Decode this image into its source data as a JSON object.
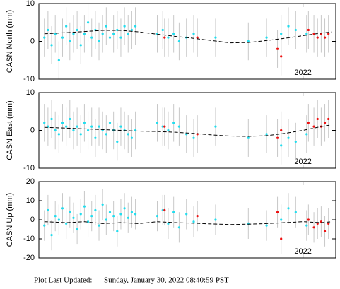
{
  "chart_data": [
    {
      "type": "scatter",
      "ylabel": "CASN North (mm)",
      "xlim": [
        2020.55,
        2022.18
      ],
      "xticks": [
        2022
      ],
      "ylim": [
        -10,
        10
      ],
      "yticks": [
        10,
        0,
        -10
      ],
      "series": [
        {
          "mode": "markers",
          "color": "#22ddee",
          "error": 5,
          "x": [
            2020.58,
            2020.6,
            2020.62,
            2020.64,
            2020.66,
            2020.68,
            2020.7,
            2020.72,
            2020.74,
            2020.76,
            2020.78,
            2020.8,
            2020.82,
            2020.84,
            2020.86,
            2020.88,
            2020.9,
            2020.92,
            2020.94,
            2020.96,
            2020.98,
            2021.0,
            2021.02,
            2021.04,
            2021.06,
            2021.08,
            2021.2,
            2021.23,
            2021.26,
            2021.29,
            2021.32,
            2021.36,
            2021.4,
            2021.52,
            2021.7,
            2021.8,
            2021.88,
            2021.92,
            2021.96,
            2022.02
          ],
          "values": [
            1,
            3,
            -1,
            2,
            -5,
            1,
            4,
            0,
            2,
            3,
            -1,
            2,
            5,
            1,
            3,
            0,
            2,
            4,
            1,
            2,
            3,
            1,
            4,
            2,
            3,
            4,
            2,
            3,
            1,
            2,
            0,
            1,
            2,
            1,
            0,
            1,
            2,
            4,
            3,
            2
          ]
        },
        {
          "mode": "markers",
          "color": "#ee1111",
          "error": 5,
          "x": [
            2021.24,
            2021.42,
            2021.86,
            2021.88,
            2022.03,
            2022.06,
            2022.08,
            2022.1,
            2022.12,
            2022.14
          ],
          "values": [
            1,
            1,
            -2,
            -4,
            3,
            2,
            1,
            2,
            1,
            2
          ]
        },
        {
          "mode": "line",
          "color": "#000000",
          "x": [
            2020.58,
            2020.7,
            2020.8,
            2020.9,
            2021.0,
            2021.1,
            2021.2,
            2021.3,
            2021.4,
            2021.5,
            2021.6,
            2021.7,
            2021.8,
            2021.9,
            2022.0,
            2022.1,
            2022.16
          ],
          "values": [
            2,
            2.3,
            2.6,
            2.9,
            2.9,
            2.5,
            1.9,
            1.3,
            0.8,
            0.2,
            -0.4,
            -0.3,
            0.2,
            0.8,
            1.5,
            2.2,
            2.5
          ]
        }
      ]
    },
    {
      "type": "scatter",
      "ylabel": "CASN East (mm)",
      "xlim": [
        2020.55,
        2022.18
      ],
      "xticks": [
        2022
      ],
      "ylim": [
        -10,
        10
      ],
      "yticks": [
        10,
        0,
        -10
      ],
      "series": [
        {
          "mode": "markers",
          "color": "#22ddee",
          "error": 5,
          "x": [
            2020.58,
            2020.6,
            2020.62,
            2020.64,
            2020.66,
            2020.68,
            2020.7,
            2020.72,
            2020.74,
            2020.76,
            2020.78,
            2020.8,
            2020.82,
            2020.84,
            2020.86,
            2020.88,
            2020.9,
            2020.92,
            2020.94,
            2020.96,
            2020.98,
            2021.0,
            2021.02,
            2021.04,
            2021.06,
            2021.08,
            2021.2,
            2021.23,
            2021.26,
            2021.29,
            2021.32,
            2021.36,
            2021.4,
            2021.52,
            2021.7,
            2021.8,
            2021.88,
            2021.92,
            2021.96,
            2022.02
          ],
          "values": [
            2,
            1,
            3,
            0,
            -1,
            2,
            1,
            3,
            0,
            1,
            -1,
            2,
            0,
            1,
            -2,
            1,
            0,
            -1,
            2,
            0,
            -3,
            1,
            0,
            -1,
            -2,
            0,
            2,
            1,
            0,
            2,
            1,
            -1,
            -2,
            1,
            -2,
            -1,
            -4,
            -2,
            -3,
            -1
          ]
        },
        {
          "mode": "markers",
          "color": "#ee1111",
          "error": 5,
          "x": [
            2021.24,
            2021.42,
            2021.86,
            2021.88,
            2022.03,
            2022.06,
            2022.08,
            2022.1,
            2022.12,
            2022.14
          ],
          "values": [
            1,
            -1,
            -2,
            0,
            2,
            1,
            3,
            1,
            2,
            3
          ]
        },
        {
          "mode": "line",
          "color": "#000000",
          "x": [
            2020.58,
            2020.7,
            2020.8,
            2020.9,
            2021.0,
            2021.1,
            2021.2,
            2021.3,
            2021.4,
            2021.5,
            2021.6,
            2021.7,
            2021.8,
            2021.9,
            2022.0,
            2022.1,
            2022.16
          ],
          "values": [
            0.8,
            0.6,
            0.4,
            0.2,
            0,
            -0.2,
            -0.3,
            -0.5,
            -0.8,
            -1.2,
            -1.5,
            -1.6,
            -1.4,
            -0.8,
            0,
            1,
            1.5
          ]
        }
      ]
    },
    {
      "type": "scatter",
      "ylabel": "CASN Up (mm)",
      "xlim": [
        2020.55,
        2022.18
      ],
      "xticks": [
        2022
      ],
      "ylim": [
        -20,
        20
      ],
      "yticks": [
        20,
        10,
        0,
        -10,
        -20
      ],
      "series": [
        {
          "mode": "markers",
          "color": "#22ddee",
          "error": 8,
          "x": [
            2020.58,
            2020.6,
            2020.62,
            2020.64,
            2020.66,
            2020.68,
            2020.7,
            2020.72,
            2020.74,
            2020.76,
            2020.78,
            2020.8,
            2020.82,
            2020.84,
            2020.86,
            2020.88,
            2020.9,
            2020.92,
            2020.94,
            2020.96,
            2020.98,
            2021.0,
            2021.02,
            2021.04,
            2021.06,
            2021.08,
            2021.2,
            2021.23,
            2021.26,
            2021.29,
            2021.32,
            2021.36,
            2021.4,
            2021.52,
            2021.7,
            2021.8,
            2021.88,
            2021.92,
            2021.96,
            2022.02
          ],
          "values": [
            -3,
            5,
            -8,
            2,
            0,
            6,
            -2,
            4,
            1,
            -5,
            3,
            7,
            -1,
            2,
            5,
            -3,
            8,
            0,
            4,
            2,
            -6,
            3,
            6,
            1,
            4,
            3,
            2,
            5,
            -2,
            4,
            -4,
            3,
            -1,
            0,
            -2,
            -3,
            0,
            6,
            4,
            -3
          ]
        },
        {
          "mode": "markers",
          "color": "#ee1111",
          "error": 8,
          "x": [
            2021.24,
            2021.42,
            2021.86,
            2021.88,
            2022.03,
            2022.06,
            2022.08,
            2022.1,
            2022.12,
            2022.14
          ],
          "values": [
            5,
            2,
            4,
            -10,
            0,
            -4,
            -2,
            -1,
            -6,
            -2
          ]
        },
        {
          "mode": "line",
          "color": "#000000",
          "x": [
            2020.58,
            2020.7,
            2020.8,
            2020.9,
            2021.0,
            2021.1,
            2021.2,
            2021.3,
            2021.4,
            2021.5,
            2021.6,
            2021.7,
            2021.8,
            2021.9,
            2022.0,
            2022.1,
            2022.16
          ],
          "values": [
            -1,
            -1.5,
            -1,
            -2,
            -1.5,
            -2,
            -1,
            -1.5,
            -1.8,
            -2.2,
            -2.5,
            -2.3,
            -2,
            -1.5,
            -1,
            -1.5,
            -1
          ]
        }
      ]
    }
  ],
  "footer": {
    "label": "Plot Last Updated:",
    "timestamp": "Sunday, January 30, 2022 08:40:59 PST"
  }
}
